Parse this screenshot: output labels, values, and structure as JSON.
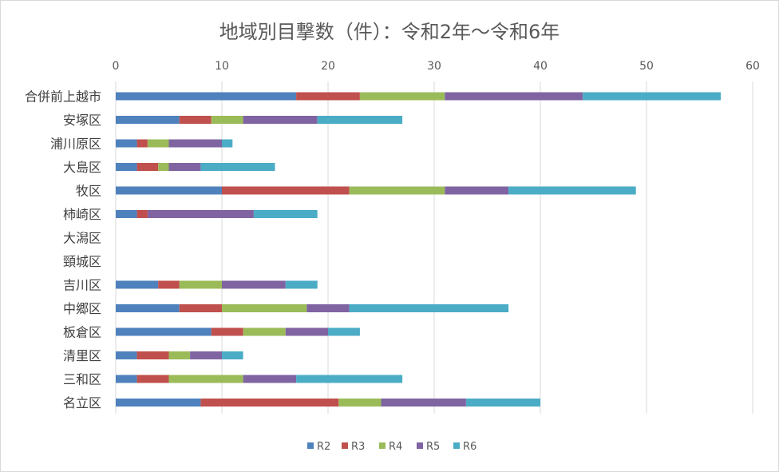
{
  "chart_data": {
    "type": "bar",
    "orientation": "horizontal",
    "stacked": true,
    "title": "地域別目撃数（件）：令和2年～令和6年",
    "xlim": [
      0,
      60
    ],
    "xticks": [
      0,
      10,
      20,
      30,
      40,
      50,
      60
    ],
    "grid": true,
    "legend_position": "bottom",
    "categories": [
      "合併前上越市",
      "安塚区",
      "浦川原区",
      "大島区",
      "牧区",
      "柿崎区",
      "大潟区",
      "頸城区",
      "吉川区",
      "中郷区",
      "板倉区",
      "清里区",
      "三和区",
      "名立区"
    ],
    "series": [
      {
        "name": "R2",
        "color": "#4f81bd",
        "values": [
          17,
          6,
          2,
          2,
          10,
          2,
          0,
          0,
          4,
          6,
          9,
          2,
          2,
          8
        ]
      },
      {
        "name": "R3",
        "color": "#c0504d",
        "values": [
          6,
          3,
          1,
          2,
          12,
          1,
          0,
          0,
          2,
          4,
          3,
          3,
          3,
          13
        ]
      },
      {
        "name": "R4",
        "color": "#9bbb59",
        "values": [
          8,
          3,
          2,
          1,
          9,
          0,
          0,
          0,
          4,
          8,
          4,
          2,
          7,
          4
        ]
      },
      {
        "name": "R5",
        "color": "#8064a2",
        "values": [
          13,
          7,
          5,
          3,
          6,
          10,
          0,
          0,
          6,
          4,
          4,
          3,
          5,
          8
        ]
      },
      {
        "name": "R6",
        "color": "#4bacc6",
        "values": [
          13,
          8,
          1,
          7,
          12,
          6,
          0,
          0,
          3,
          15,
          3,
          2,
          10,
          7
        ]
      }
    ]
  }
}
